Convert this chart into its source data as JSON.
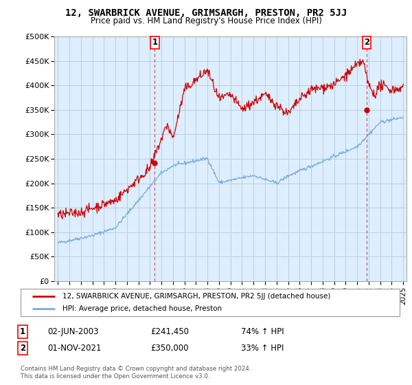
{
  "title": "12, SWARBRICK AVENUE, GRIMSARGH, PRESTON, PR2 5JJ",
  "subtitle": "Price paid vs. HM Land Registry's House Price Index (HPI)",
  "ylim": [
    0,
    500000
  ],
  "yticks": [
    0,
    50000,
    100000,
    150000,
    200000,
    250000,
    300000,
    350000,
    400000,
    450000,
    500000
  ],
  "ytick_labels": [
    "£0",
    "£50K",
    "£100K",
    "£150K",
    "£200K",
    "£250K",
    "£300K",
    "£350K",
    "£400K",
    "£450K",
    "£500K"
  ],
  "xlim_start": 1994.7,
  "xlim_end": 2025.3,
  "xticks": [
    1995,
    1996,
    1997,
    1998,
    1999,
    2000,
    2001,
    2002,
    2003,
    2004,
    2005,
    2006,
    2007,
    2008,
    2009,
    2010,
    2011,
    2012,
    2013,
    2014,
    2015,
    2016,
    2017,
    2018,
    2019,
    2020,
    2021,
    2022,
    2023,
    2024,
    2025
  ],
  "red_line_color": "#cc0000",
  "blue_line_color": "#7aabdb",
  "plot_bg_color": "#ddeeff",
  "marker1_x": 2003.42,
  "marker1_y": 241450,
  "marker2_x": 2021.83,
  "marker2_y": 350000,
  "legend_line1": "12, SWARBRICK AVENUE, GRIMSARGH, PRESTON, PR2 5JJ (detached house)",
  "legend_line2": "HPI: Average price, detached house, Preston",
  "annotation1_num": "1",
  "annotation1_date": "02-JUN-2003",
  "annotation1_price": "£241,450",
  "annotation1_hpi": "74% ↑ HPI",
  "annotation2_num": "2",
  "annotation2_date": "01-NOV-2021",
  "annotation2_price": "£350,000",
  "annotation2_hpi": "33% ↑ HPI",
  "footer1": "Contains HM Land Registry data © Crown copyright and database right 2024.",
  "footer2": "This data is licensed under the Open Government Licence v3.0.",
  "background_color": "#ffffff",
  "grid_color": "#bbccdd"
}
